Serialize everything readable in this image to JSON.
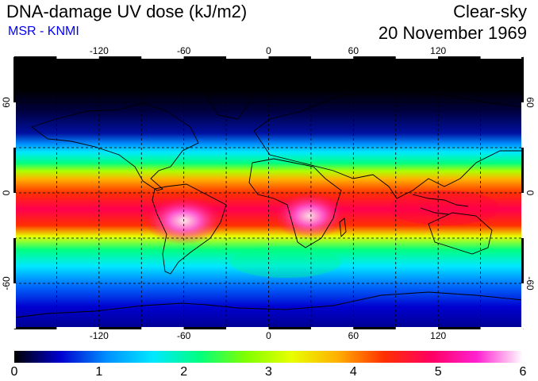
{
  "header": {
    "title": "DNA-damage UV dose (kJ/m2)",
    "source": "MSR - KNMI",
    "condition": "Clear-sky",
    "date": "20 November 1969"
  },
  "map": {
    "projection": "equirectangular",
    "lon_range": [
      -180,
      180
    ],
    "lat_range": [
      -90,
      90
    ],
    "lon_ticks": [
      "-120",
      "-60",
      "0",
      "60",
      "120"
    ],
    "lat_ticks": [
      "60",
      "0",
      "-60"
    ],
    "lat_ticks_right": [
      "60",
      "0",
      "-60"
    ]
  },
  "colorbar": {
    "min": 0,
    "max": 6,
    "labels": [
      "0",
      "1",
      "2",
      "3",
      "4",
      "5",
      "6"
    ],
    "colors": [
      "#000000",
      "#0000d0",
      "#0090ff",
      "#00e8ff",
      "#00ff80",
      "#80ff00",
      "#e8ff00",
      "#ffb000",
      "#ff3000",
      "#ff0060",
      "#ff20d0",
      "#ffffff"
    ]
  }
}
